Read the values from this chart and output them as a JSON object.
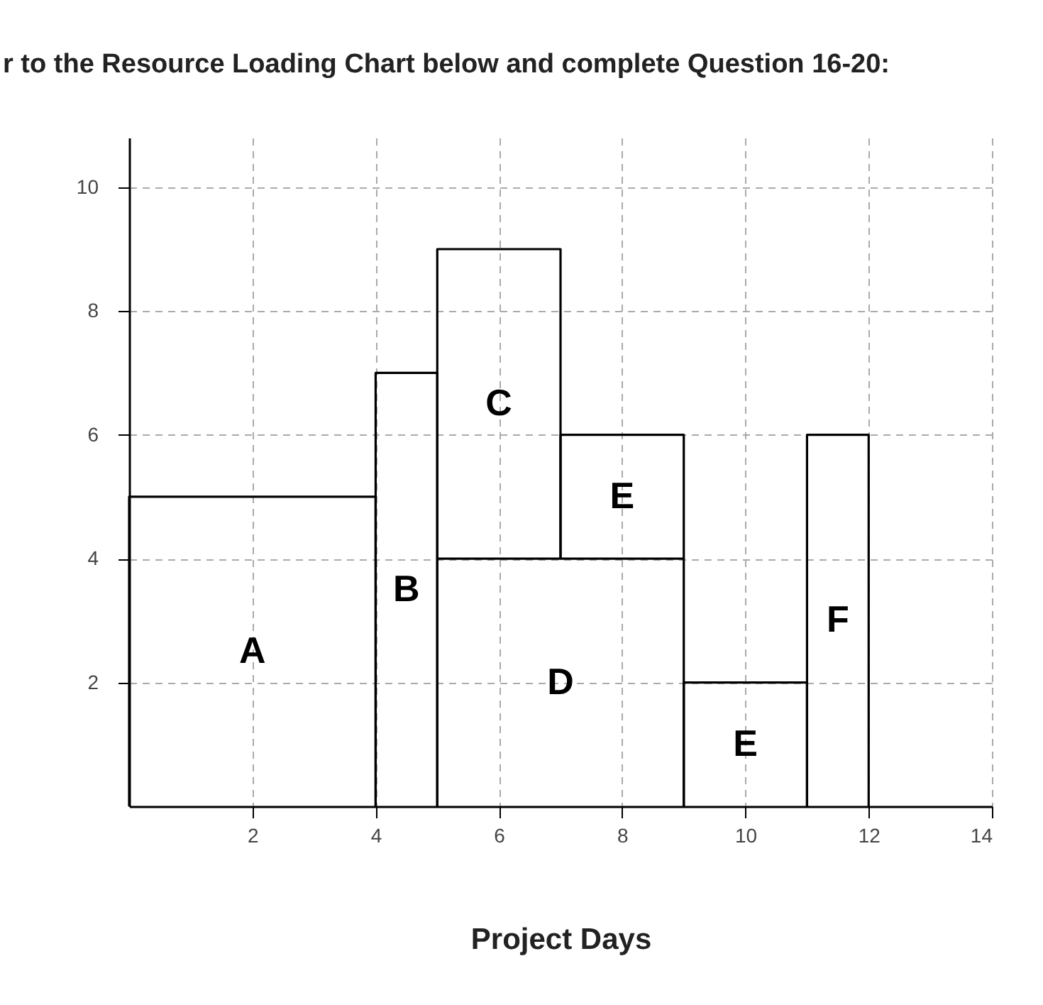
{
  "chart_data": {
    "type": "line",
    "title": "r to the Resource Loading Chart below and complete Question 16-20:",
    "xlabel": "Project Days",
    "xlim": [
      0,
      14
    ],
    "ylim": [
      0,
      10.8
    ],
    "xticks": [
      2,
      4,
      6,
      8,
      10,
      12,
      14
    ],
    "yticks": [
      2,
      4,
      6,
      8,
      10
    ],
    "grid": true,
    "series": [
      {
        "name": "A",
        "color": "#000000",
        "x": [
          0,
          0,
          4,
          4
        ],
        "values": [
          0,
          5,
          5,
          0
        ]
      },
      {
        "name": "B",
        "color": "#000000",
        "x": [
          4,
          4,
          5,
          5
        ],
        "values": [
          0,
          7,
          7,
          0
        ]
      },
      {
        "name": "C",
        "color": "#000000",
        "x": [
          5,
          5,
          7,
          7
        ],
        "values": [
          4,
          9,
          9,
          4
        ]
      },
      {
        "name": "D",
        "color": "#000000",
        "x": [
          5,
          5,
          9,
          9
        ],
        "values": [
          0,
          4,
          4,
          0
        ]
      },
      {
        "name": "E",
        "color": "#000000",
        "x": [
          7,
          7,
          9,
          9
        ],
        "values": [
          4,
          6,
          6,
          4
        ]
      },
      {
        "name": "E",
        "color": "#000000",
        "x": [
          9,
          9,
          11,
          11
        ],
        "values": [
          0,
          2,
          2,
          0
        ]
      },
      {
        "name": "F",
        "color": "#000000",
        "x": [
          11,
          11,
          12,
          12
        ],
        "values": [
          0,
          6,
          6,
          0
        ]
      }
    ]
  }
}
